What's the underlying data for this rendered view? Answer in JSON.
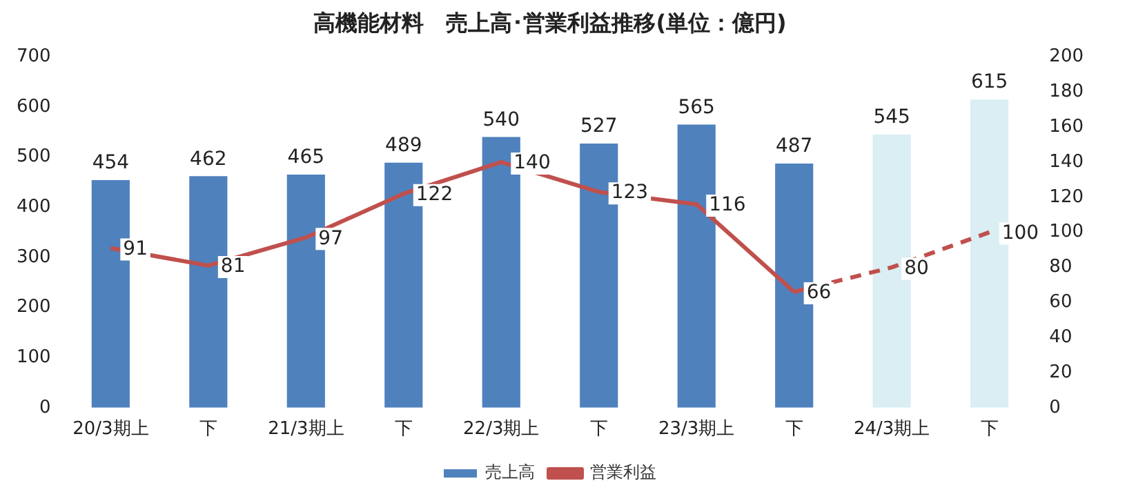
{
  "chart_data": {
    "type": "bar",
    "title": "高機能材料　売上高･営業利益推移(単位：億円)",
    "categories": [
      "20/3期上",
      "下",
      "21/3期上",
      "下",
      "22/3期上",
      "下",
      "23/3期上",
      "下",
      "24/3期上",
      "下"
    ],
    "series": [
      {
        "name": "売上高",
        "color": "#4f81bd",
        "colors": [
          "#4f81bd",
          "#4f81bd",
          "#4f81bd",
          "#4f81bd",
          "#4f81bd",
          "#4f81bd",
          "#4f81bd",
          "#4f81bd",
          "#daeef3",
          "#daeef3"
        ],
        "values": [
          454,
          462,
          465,
          489,
          540,
          527,
          565,
          487,
          545,
          615
        ],
        "value_labels": [
          "454",
          "462",
          "465",
          "489",
          "540",
          "527",
          "565",
          "487",
          "545",
          "615"
        ]
      },
      {
        "name": "営業利益",
        "type": "line",
        "axis": "y2",
        "color": "#c0504d",
        "line_style": "solid",
        "values": [
          91,
          81,
          97,
          122,
          140,
          123,
          116,
          66,
          null,
          null
        ],
        "value_labels": [
          "91",
          "81",
          "97",
          "122",
          "140",
          "123",
          "116",
          "66",
          null,
          null
        ]
      },
      {
        "type": "line",
        "axis": "y2",
        "color": "#c0504d",
        "line_style": "dashed",
        "values": [
          null,
          null,
          null,
          null,
          null,
          null,
          null,
          66,
          80,
          100
        ],
        "value_labels": [
          null,
          null,
          null,
          null,
          null,
          null,
          null,
          null,
          "80",
          "100"
        ]
      }
    ],
    "ylim": [
      0,
      700
    ],
    "yticks": [
      0,
      100,
      200,
      300,
      400,
      500,
      600,
      700
    ],
    "y2lim": [
      0,
      200
    ],
    "y2ticks": [
      0,
      20,
      40,
      60,
      80,
      100,
      120,
      140,
      160,
      180,
      200
    ],
    "grid": false,
    "legend": "bottom",
    "marker": "none"
  }
}
